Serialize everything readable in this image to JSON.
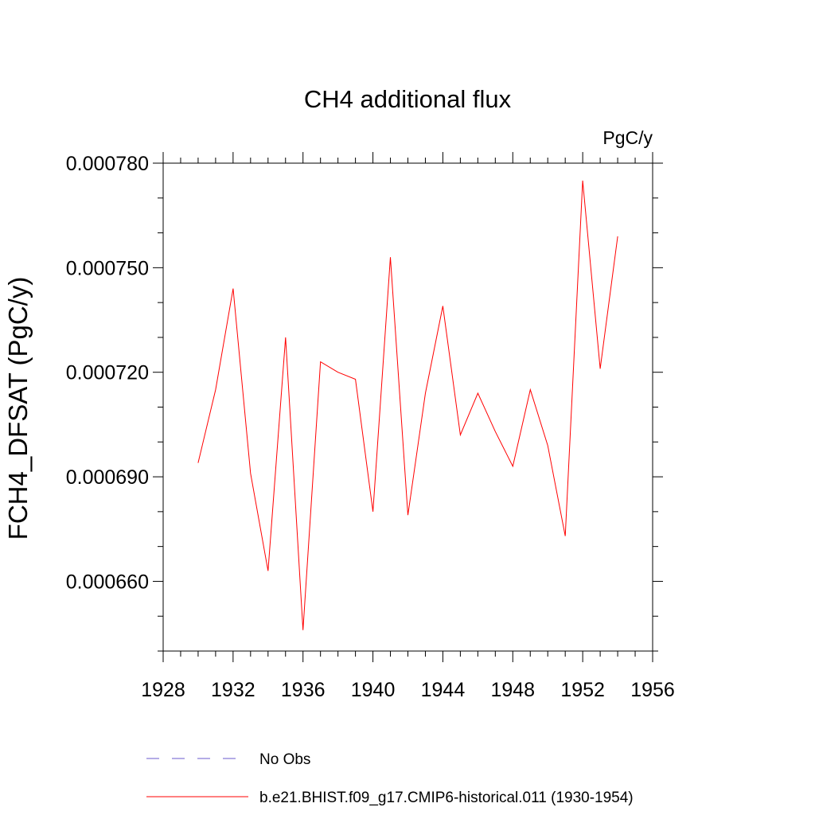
{
  "chart_data": {
    "type": "line",
    "title": "CH4 additional flux",
    "units": "PgC/y",
    "ylabel": "FCH4_DFSAT  (PgC/y)",
    "xlabel": "",
    "xlim": [
      1928,
      1956
    ],
    "ylim": [
      0.00064,
      0.00078
    ],
    "x_ticks": [
      1928,
      1932,
      1936,
      1940,
      1944,
      1948,
      1952,
      1956
    ],
    "x_tick_labels": [
      "1928",
      "1932",
      "1936",
      "1940",
      "1944",
      "1948",
      "1952",
      "1956"
    ],
    "y_ticks": [
      0.00066,
      0.00069,
      0.00072,
      0.00075,
      0.00078
    ],
    "y_tick_labels": [
      "0.000660",
      "0.000690",
      "0.000720",
      "0.000750",
      "0.000780"
    ],
    "grid": false,
    "legend_position": "bottom",
    "series": [
      {
        "name": "b.e21.BHIST.f09_g17.CMIP6-historical.011 (1930-1954)",
        "color": "#ff0000",
        "style": "solid",
        "x": [
          1930,
          1931,
          1932,
          1933,
          1934,
          1935,
          1936,
          1937,
          1938,
          1939,
          1940,
          1941,
          1942,
          1943,
          1944,
          1945,
          1946,
          1947,
          1948,
          1949,
          1950,
          1951,
          1952,
          1953,
          1954
        ],
        "y": [
          0.000694,
          0.000715,
          0.000744,
          0.000691,
          0.000663,
          0.00073,
          0.000646,
          0.000723,
          0.00072,
          0.000718,
          0.00068,
          0.000753,
          0.000679,
          0.000714,
          0.000739,
          0.000702,
          0.000714,
          0.000703,
          0.000693,
          0.000715,
          0.000699,
          0.000673,
          0.000775,
          0.000721,
          0.000759
        ]
      }
    ],
    "legend": [
      {
        "label": "No Obs",
        "color": "#6a5acd",
        "style": "dashed"
      },
      {
        "label": "b.e21.BHIST.f09_g17.CMIP6-historical.011 (1930-1954)",
        "color": "#ff0000",
        "style": "solid"
      }
    ]
  }
}
